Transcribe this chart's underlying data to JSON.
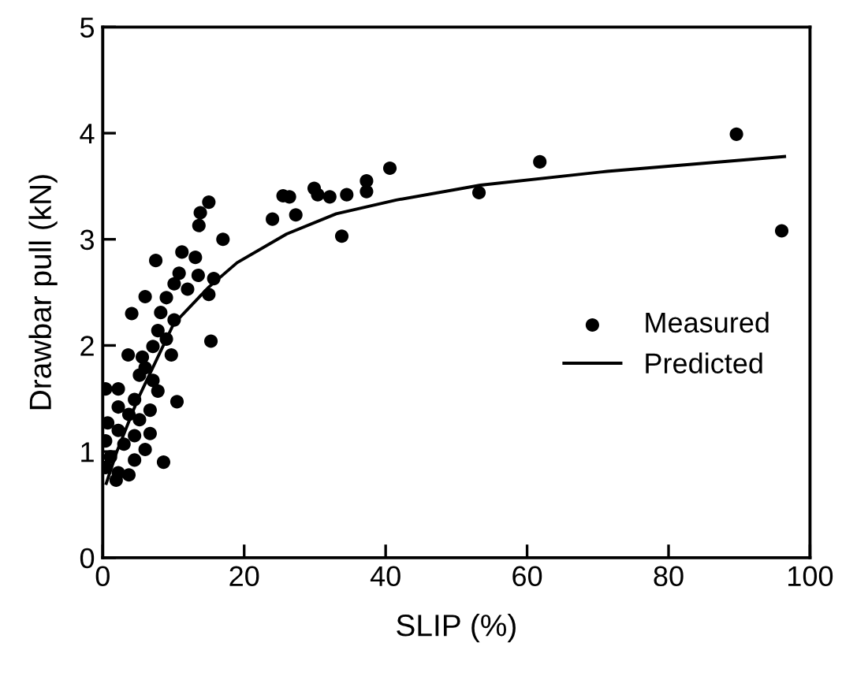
{
  "chart_data": {
    "type": "scatter",
    "xlabel": "SLIP (%)",
    "ylabel": "Drawbar pull (kN)",
    "xlim": [
      0,
      100
    ],
    "ylim": [
      0,
      5
    ],
    "xticks": [
      0,
      20,
      40,
      60,
      80,
      100
    ],
    "yticks": [
      0,
      1,
      2,
      3,
      4,
      5
    ],
    "grid": false,
    "legend": "right",
    "series": [
      {
        "name": "Measured",
        "marker": "circle",
        "color": "#000000",
        "x": [
          24.0,
          25.5,
          26.4,
          27.3,
          29.9,
          30.4,
          32.1,
          34.5,
          33.8,
          37.3,
          37.3,
          40.6,
          53.2,
          61.8,
          89.6,
          96.0,
          15.0,
          13.8,
          13.6,
          17.0,
          11.2,
          7.5,
          13.1,
          10.8,
          13.5,
          15.7,
          10.1,
          12.0,
          15.0,
          6.0,
          9.0,
          8.2,
          4.1,
          10.1,
          7.8,
          9.0,
          15.3,
          7.1,
          9.7,
          3.6,
          5.6,
          6.0,
          5.2,
          7.1,
          0.4,
          2.2,
          7.8,
          10.5,
          4.5,
          2.2,
          6.7,
          3.7,
          5.2,
          0.7,
          2.2,
          6.7,
          4.5,
          0.4,
          3.0,
          6.0,
          1.1,
          4.5,
          8.6,
          0.4,
          2.2,
          3.7,
          1.9
        ],
        "values": [
          3.19,
          3.41,
          3.4,
          3.23,
          3.48,
          3.42,
          3.4,
          3.42,
          3.03,
          3.55,
          3.45,
          3.67,
          3.44,
          3.73,
          3.99,
          3.08,
          3.35,
          3.25,
          3.13,
          3.0,
          2.88,
          2.8,
          2.83,
          2.68,
          2.66,
          2.63,
          2.58,
          2.53,
          2.48,
          2.46,
          2.45,
          2.31,
          2.3,
          2.24,
          2.14,
          2.06,
          2.04,
          1.99,
          1.91,
          1.91,
          1.89,
          1.79,
          1.72,
          1.67,
          1.59,
          1.59,
          1.57,
          1.47,
          1.49,
          1.42,
          1.39,
          1.35,
          1.3,
          1.27,
          1.2,
          1.17,
          1.15,
          1.1,
          1.07,
          1.02,
          0.95,
          0.92,
          0.9,
          0.85,
          0.8,
          0.78,
          0.73
        ]
      },
      {
        "name": "Predicted",
        "type": "line",
        "line_style": "solid",
        "color": "#000000",
        "x": [
          0.5,
          2,
          5,
          10,
          15,
          19,
          26,
          33,
          41.5,
          53.4,
          71.3,
          96.4
        ],
        "values": [
          0.7,
          1.0,
          1.5,
          2.2,
          2.55,
          2.78,
          3.05,
          3.24,
          3.37,
          3.51,
          3.64,
          3.78
        ]
      }
    ]
  }
}
